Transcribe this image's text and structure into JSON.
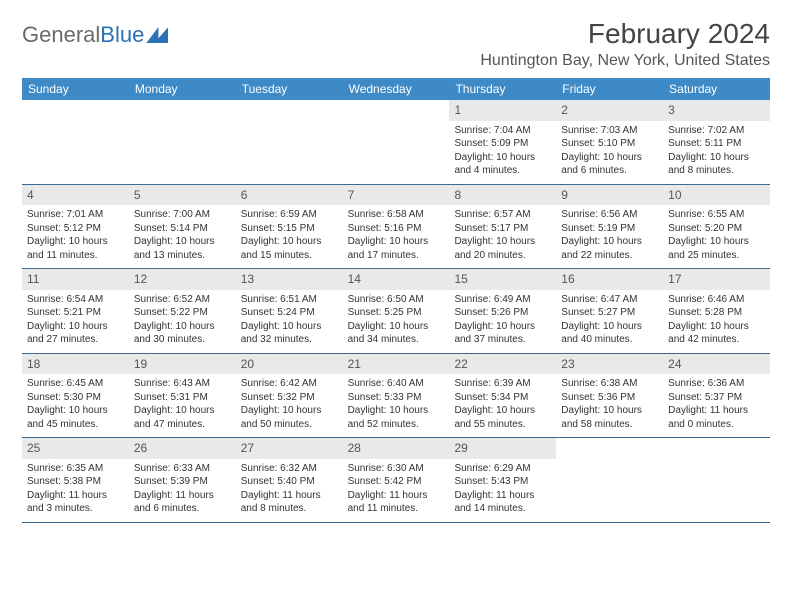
{
  "logo": {
    "word1": "General",
    "word2": "Blue"
  },
  "title": "February 2024",
  "location": "Huntington Bay, New York, United States",
  "colors": {
    "header_bg": "#3d8ac7",
    "header_text": "#ffffff",
    "daynum_bg": "#e9e9e9",
    "week_border": "#3d6a95",
    "logo_gray": "#6b6b6b",
    "logo_blue": "#2a72b5"
  },
  "weekdays": [
    "Sunday",
    "Monday",
    "Tuesday",
    "Wednesday",
    "Thursday",
    "Friday",
    "Saturday"
  ],
  "weeks": [
    [
      null,
      null,
      null,
      null,
      {
        "n": "1",
        "sr": "Sunrise: 7:04 AM",
        "ss": "Sunset: 5:09 PM",
        "dl": "Daylight: 10 hours and 4 minutes."
      },
      {
        "n": "2",
        "sr": "Sunrise: 7:03 AM",
        "ss": "Sunset: 5:10 PM",
        "dl": "Daylight: 10 hours and 6 minutes."
      },
      {
        "n": "3",
        "sr": "Sunrise: 7:02 AM",
        "ss": "Sunset: 5:11 PM",
        "dl": "Daylight: 10 hours and 8 minutes."
      }
    ],
    [
      {
        "n": "4",
        "sr": "Sunrise: 7:01 AM",
        "ss": "Sunset: 5:12 PM",
        "dl": "Daylight: 10 hours and 11 minutes."
      },
      {
        "n": "5",
        "sr": "Sunrise: 7:00 AM",
        "ss": "Sunset: 5:14 PM",
        "dl": "Daylight: 10 hours and 13 minutes."
      },
      {
        "n": "6",
        "sr": "Sunrise: 6:59 AM",
        "ss": "Sunset: 5:15 PM",
        "dl": "Daylight: 10 hours and 15 minutes."
      },
      {
        "n": "7",
        "sr": "Sunrise: 6:58 AM",
        "ss": "Sunset: 5:16 PM",
        "dl": "Daylight: 10 hours and 17 minutes."
      },
      {
        "n": "8",
        "sr": "Sunrise: 6:57 AM",
        "ss": "Sunset: 5:17 PM",
        "dl": "Daylight: 10 hours and 20 minutes."
      },
      {
        "n": "9",
        "sr": "Sunrise: 6:56 AM",
        "ss": "Sunset: 5:19 PM",
        "dl": "Daylight: 10 hours and 22 minutes."
      },
      {
        "n": "10",
        "sr": "Sunrise: 6:55 AM",
        "ss": "Sunset: 5:20 PM",
        "dl": "Daylight: 10 hours and 25 minutes."
      }
    ],
    [
      {
        "n": "11",
        "sr": "Sunrise: 6:54 AM",
        "ss": "Sunset: 5:21 PM",
        "dl": "Daylight: 10 hours and 27 minutes."
      },
      {
        "n": "12",
        "sr": "Sunrise: 6:52 AM",
        "ss": "Sunset: 5:22 PM",
        "dl": "Daylight: 10 hours and 30 minutes."
      },
      {
        "n": "13",
        "sr": "Sunrise: 6:51 AM",
        "ss": "Sunset: 5:24 PM",
        "dl": "Daylight: 10 hours and 32 minutes."
      },
      {
        "n": "14",
        "sr": "Sunrise: 6:50 AM",
        "ss": "Sunset: 5:25 PM",
        "dl": "Daylight: 10 hours and 34 minutes."
      },
      {
        "n": "15",
        "sr": "Sunrise: 6:49 AM",
        "ss": "Sunset: 5:26 PM",
        "dl": "Daylight: 10 hours and 37 minutes."
      },
      {
        "n": "16",
        "sr": "Sunrise: 6:47 AM",
        "ss": "Sunset: 5:27 PM",
        "dl": "Daylight: 10 hours and 40 minutes."
      },
      {
        "n": "17",
        "sr": "Sunrise: 6:46 AM",
        "ss": "Sunset: 5:28 PM",
        "dl": "Daylight: 10 hours and 42 minutes."
      }
    ],
    [
      {
        "n": "18",
        "sr": "Sunrise: 6:45 AM",
        "ss": "Sunset: 5:30 PM",
        "dl": "Daylight: 10 hours and 45 minutes."
      },
      {
        "n": "19",
        "sr": "Sunrise: 6:43 AM",
        "ss": "Sunset: 5:31 PM",
        "dl": "Daylight: 10 hours and 47 minutes."
      },
      {
        "n": "20",
        "sr": "Sunrise: 6:42 AM",
        "ss": "Sunset: 5:32 PM",
        "dl": "Daylight: 10 hours and 50 minutes."
      },
      {
        "n": "21",
        "sr": "Sunrise: 6:40 AM",
        "ss": "Sunset: 5:33 PM",
        "dl": "Daylight: 10 hours and 52 minutes."
      },
      {
        "n": "22",
        "sr": "Sunrise: 6:39 AM",
        "ss": "Sunset: 5:34 PM",
        "dl": "Daylight: 10 hours and 55 minutes."
      },
      {
        "n": "23",
        "sr": "Sunrise: 6:38 AM",
        "ss": "Sunset: 5:36 PM",
        "dl": "Daylight: 10 hours and 58 minutes."
      },
      {
        "n": "24",
        "sr": "Sunrise: 6:36 AM",
        "ss": "Sunset: 5:37 PM",
        "dl": "Daylight: 11 hours and 0 minutes."
      }
    ],
    [
      {
        "n": "25",
        "sr": "Sunrise: 6:35 AM",
        "ss": "Sunset: 5:38 PM",
        "dl": "Daylight: 11 hours and 3 minutes."
      },
      {
        "n": "26",
        "sr": "Sunrise: 6:33 AM",
        "ss": "Sunset: 5:39 PM",
        "dl": "Daylight: 11 hours and 6 minutes."
      },
      {
        "n": "27",
        "sr": "Sunrise: 6:32 AM",
        "ss": "Sunset: 5:40 PM",
        "dl": "Daylight: 11 hours and 8 minutes."
      },
      {
        "n": "28",
        "sr": "Sunrise: 6:30 AM",
        "ss": "Sunset: 5:42 PM",
        "dl": "Daylight: 11 hours and 11 minutes."
      },
      {
        "n": "29",
        "sr": "Sunrise: 6:29 AM",
        "ss": "Sunset: 5:43 PM",
        "dl": "Daylight: 11 hours and 14 minutes."
      },
      null,
      null
    ]
  ]
}
